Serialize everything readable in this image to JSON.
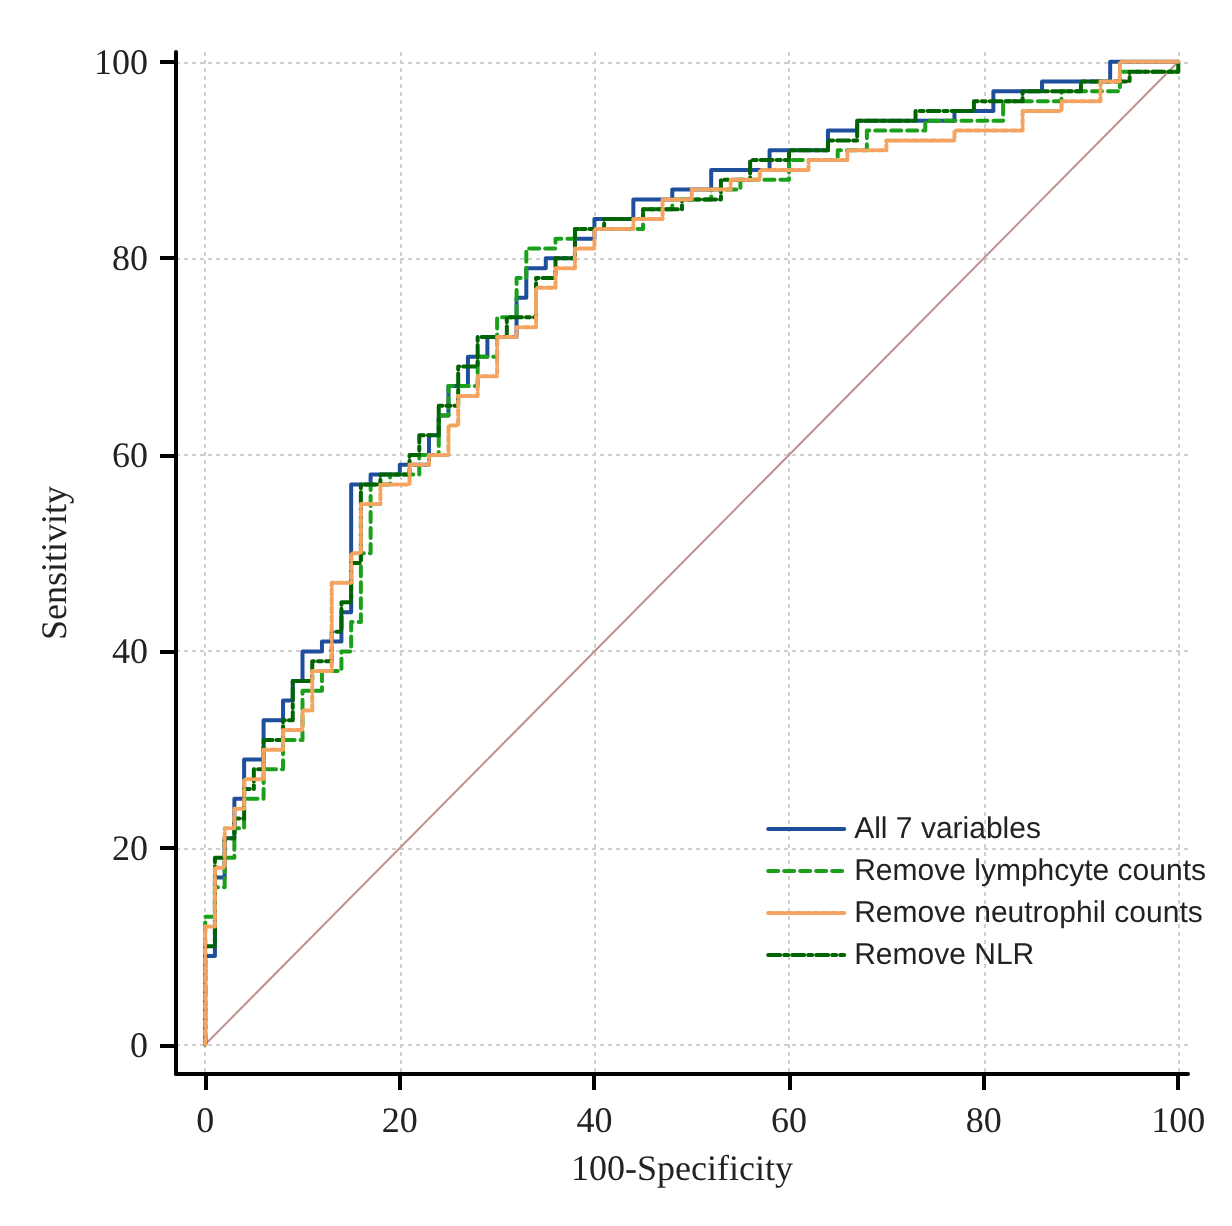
{
  "chart_data": {
    "type": "step",
    "xlabel": "100-Specificity",
    "ylabel": "Sensitivity",
    "xlim": [
      -3,
      101
    ],
    "ylim": [
      -3,
      101
    ],
    "xticks": [
      0,
      20,
      40,
      60,
      80,
      100
    ],
    "yticks": [
      0,
      20,
      40,
      60,
      80,
      100
    ],
    "grid": true,
    "legend": "bottom right",
    "series": [
      {
        "name": "All 7 variables",
        "color": "#1f4e9c",
        "line_style": "solid",
        "x": [
          0,
          0,
          1,
          1,
          2,
          3,
          4,
          6,
          8,
          9,
          10,
          12,
          14,
          15,
          17,
          20,
          23,
          24,
          25,
          27,
          29,
          32,
          33,
          35,
          38,
          40,
          44,
          48,
          52,
          58,
          64,
          67,
          77,
          81,
          86,
          93,
          100
        ],
        "values": [
          0,
          9,
          14,
          17,
          21,
          25,
          29,
          33,
          35,
          37,
          40,
          41,
          44,
          57,
          58,
          59,
          62,
          64,
          67,
          70,
          72,
          76,
          79,
          80,
          82,
          84,
          86,
          87,
          89,
          91,
          93,
          94,
          95,
          97,
          98,
          100,
          100
        ]
      },
      {
        "name": "Remove lymphcyte counts",
        "color": "#1ca01c",
        "line_style": "dashed",
        "x": [
          0,
          0,
          1,
          2,
          3,
          4,
          6,
          8,
          10,
          12,
          14,
          15,
          16,
          17,
          19,
          22,
          24,
          25,
          28,
          30,
          32,
          33,
          36,
          38,
          45,
          48,
          52,
          55,
          60,
          65,
          68,
          74,
          82,
          88,
          94,
          100
        ],
        "values": [
          0,
          13,
          16,
          19,
          22,
          25,
          28,
          31,
          36,
          38,
          40,
          43,
          50,
          57,
          58,
          60,
          64,
          67,
          70,
          74,
          78,
          81,
          82,
          83,
          85,
          86,
          87,
          88,
          90,
          91,
          93,
          94,
          96,
          97,
          99,
          99
        ]
      },
      {
        "name": "Remove neutrophil counts",
        "color": "#f4a460",
        "line_style": "dotted",
        "x": [
          0,
          0,
          1,
          2,
          3,
          4,
          6,
          8,
          10,
          11,
          13,
          13,
          15,
          16,
          18,
          21,
          23,
          25,
          26,
          28,
          30,
          32,
          34,
          36,
          38,
          40,
          44,
          47,
          50,
          54,
          57,
          62,
          66,
          70,
          77,
          84,
          88,
          92,
          94,
          100
        ],
        "values": [
          0,
          12,
          18,
          22,
          24,
          27,
          30,
          32,
          34,
          38,
          40,
          47,
          50,
          55,
          57,
          59,
          60,
          63,
          66,
          68,
          72,
          73,
          77,
          79,
          81,
          83,
          84,
          86,
          87,
          88,
          89,
          90,
          91,
          92,
          93,
          95,
          96,
          98,
          100,
          100
        ]
      },
      {
        "name": "Remove NLR",
        "color": "#006400",
        "line_style": "dashdot",
        "x": [
          0,
          0,
          1,
          1,
          2,
          3,
          4,
          5,
          6,
          8,
          9,
          11,
          13,
          14,
          15,
          16,
          18,
          21,
          22,
          24,
          26,
          28,
          31,
          34,
          36,
          38,
          41,
          45,
          49,
          53,
          56,
          60,
          64,
          67,
          73,
          79,
          84,
          90,
          95,
          100
        ],
        "values": [
          0,
          10,
          14,
          19,
          21,
          23,
          26,
          28,
          31,
          33,
          37,
          39,
          42,
          45,
          49,
          57,
          58,
          60,
          62,
          65,
          69,
          72,
          74,
          78,
          80,
          83,
          84,
          85,
          86,
          88,
          90,
          91,
          92,
          94,
          95,
          96,
          97,
          98,
          99,
          100
        ]
      },
      {
        "type": "line",
        "color": "#c09090",
        "line_style": "solid",
        "x": [
          0,
          100
        ],
        "values": [
          0,
          100
        ]
      }
    ]
  }
}
